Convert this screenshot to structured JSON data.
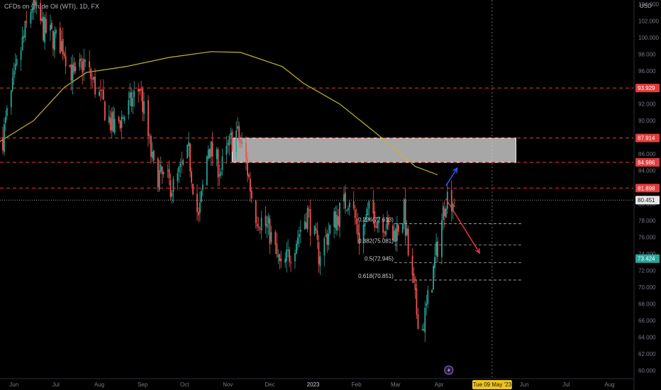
{
  "header": {
    "symbol_title": "CFDs on Crude Oil (WTI), 1D, FX",
    "currency": "USD"
  },
  "colors": {
    "bull": "#26a69a",
    "bear": "#ef5350",
    "ma": "#c9b52c",
    "hline": "#e23b3b",
    "blue_arrow": "#2962ff",
    "red_arrow": "#f23645",
    "date_badge": "#f0c51a"
  },
  "chart_data": {
    "type": "candlestick",
    "title": "CFDs on Crude Oil (WTI), 1D, FX",
    "currency": "USD",
    "ylim": [
      59,
      104.5
    ],
    "y_ticks": [
      60,
      62,
      64,
      66,
      68,
      70,
      72,
      74,
      76,
      78,
      80,
      82,
      84,
      86,
      88,
      90,
      92,
      94,
      96,
      98,
      100,
      102,
      104
    ],
    "y_tick_labels": [
      "60.000",
      "62.000",
      "64.000",
      "66.000",
      "68.000",
      "70.000",
      "72.000",
      "74.000",
      "76.000",
      "78.000",
      "80.000",
      "82.000",
      "84.000",
      "86.000",
      "88.000",
      "90.000",
      "92.000",
      "94.000",
      "96.000",
      "98.000",
      "100.000",
      "102.000",
      "104.000"
    ],
    "x_labels": [
      "Jun",
      "Jul",
      "Aug",
      "Sep",
      "Oct",
      "Nov",
      "Dec",
      "2023",
      "Feb",
      "Mar",
      "Apr",
      "Jun",
      "Jul",
      "Aug"
    ],
    "x_label_dates": [
      "2022-06-01",
      "2022-07-01",
      "2022-08-01",
      "2022-09-01",
      "2022-10-01",
      "2022-11-01",
      "2022-12-01",
      "2023-01-01",
      "2023-02-01",
      "2023-03-01",
      "2023-04-01",
      "2023-06-01",
      "2023-07-01",
      "2023-08-01"
    ],
    "x_range": [
      "2022-05-22",
      "2023-08-18"
    ],
    "crosshair_date": "Tue 09 May '23",
    "moving_average_points": [
      [
        "2022-05-22",
        87.5
      ],
      [
        "2022-06-15",
        90
      ],
      [
        "2022-07-07",
        94
      ],
      [
        "2022-07-23",
        95.8
      ],
      [
        "2022-08-20",
        96.5
      ],
      [
        "2022-09-20",
        97.6
      ],
      [
        "2022-10-20",
        98.3
      ],
      [
        "2022-11-10",
        98.2
      ],
      [
        "2022-12-10",
        96.5
      ],
      [
        "2022-12-25",
        94.5
      ],
      [
        "2023-01-20",
        92
      ],
      [
        "2023-02-15",
        88.5
      ],
      [
        "2023-03-01",
        86.5
      ],
      [
        "2023-03-15",
        84.5
      ],
      [
        "2023-03-31",
        83.5
      ]
    ],
    "price_lines": [
      {
        "value": 93.929,
        "label": "93.929",
        "style": "dashed",
        "badge": "red"
      },
      {
        "value": 87.914,
        "label": "87.914",
        "style": "dashed",
        "badge": "red"
      },
      {
        "value": 84.986,
        "label": "84.986",
        "style": "dashed",
        "badge": "red"
      },
      {
        "value": 81.898,
        "label": "81.898",
        "style": "dashed",
        "badge": "red"
      },
      {
        "value": 80.451,
        "label": "80.451",
        "style": "dotted",
        "badge": "gray"
      },
      {
        "value": 73.424,
        "label": "73.424",
        "style": "none",
        "badge": "green"
      }
    ],
    "zone": {
      "from_date": "2022-11-04",
      "to_date": "2023-05-26",
      "low": 84.986,
      "high": 87.914
    },
    "fibonacci": [
      {
        "label": "0.236(77.613)",
        "value": 77.613
      },
      {
        "label": "0.382(75.081)",
        "value": 75.081
      },
      {
        "label": "0.5(72.945)",
        "value": 72.945
      },
      {
        "label": "0.618(70.851)",
        "value": 70.851
      }
    ],
    "arrows": [
      {
        "color": "blue",
        "from": [
          "2023-04-06",
          82.2
        ],
        "to": [
          "2023-04-14",
          84.3
        ]
      },
      {
        "color": "red",
        "from": [
          "2023-04-06",
          80.6
        ],
        "to": [
          "2023-04-30",
          74.1
        ]
      }
    ],
    "candle_path": [
      [
        "2022-05-24",
        88
      ],
      [
        "2022-06-05",
        98
      ],
      [
        "2022-06-14",
        104
      ],
      [
        "2022-06-22",
        101
      ],
      [
        "2022-07-06",
        99
      ],
      [
        "2022-07-14",
        95
      ],
      [
        "2022-07-21",
        97
      ],
      [
        "2022-08-01",
        93
      ],
      [
        "2022-08-11",
        89
      ],
      [
        "2022-08-20",
        91
      ],
      [
        "2022-08-30",
        94
      ],
      [
        "2022-09-09",
        84
      ],
      [
        "2022-09-23",
        82
      ],
      [
        "2022-10-04",
        86
      ],
      [
        "2022-10-11",
        78
      ],
      [
        "2022-10-18",
        87
      ],
      [
        "2022-10-27",
        84
      ],
      [
        "2022-11-06",
        89
      ],
      [
        "2022-11-13",
        86
      ],
      [
        "2022-11-20",
        79
      ],
      [
        "2022-11-30",
        77
      ],
      [
        "2022-12-09",
        72
      ],
      [
        "2022-12-18",
        75
      ],
      [
        "2022-12-28",
        79
      ],
      [
        "2023-01-05",
        74
      ],
      [
        "2023-01-16",
        78
      ],
      [
        "2023-01-27",
        81
      ],
      [
        "2023-02-03",
        76
      ],
      [
        "2023-02-10",
        79
      ],
      [
        "2023-02-20",
        78
      ],
      [
        "2023-02-27",
        76
      ],
      [
        "2023-03-07",
        79
      ],
      [
        "2023-03-10",
        74
      ],
      [
        "2023-03-16",
        67
      ],
      [
        "2023-03-20",
        65
      ],
      [
        "2023-03-26",
        70
      ],
      [
        "2023-04-02",
        77
      ],
      [
        "2023-04-06",
        81
      ],
      [
        "2023-04-12",
        80.4
      ]
    ]
  }
}
